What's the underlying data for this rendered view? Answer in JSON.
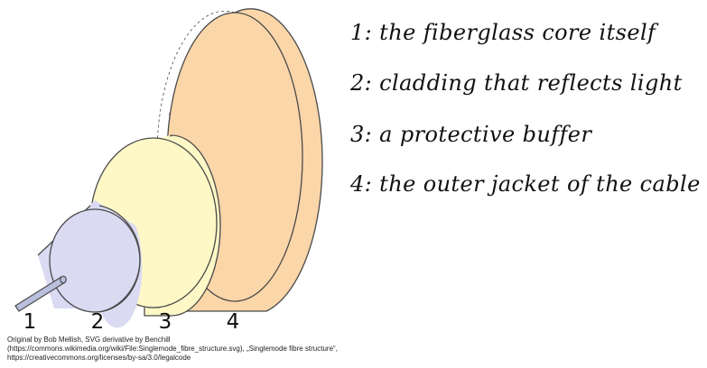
{
  "diagram": {
    "layers": [
      {
        "number": "1",
        "description": "1: the fiberglass core itself",
        "color": "#b9c0dd"
      },
      {
        "number": "2",
        "description": "2: cladding that reflects light",
        "color": "#dbdaf3"
      },
      {
        "number": "3",
        "description": "3: a protective buffer",
        "color": "#fdf8c6"
      },
      {
        "number": "4",
        "description": "4: the outer jacket of the cable",
        "color": "#fbd6a9"
      }
    ],
    "outline_color": "#4a4a4a",
    "credit": "Original by Bob Mellish, SVG derivative by Benchill (https://commons.wikimedia.org/wiki/File:Singlemode_fibre_structure.svg), „Singlemode fibre structure“, https://creativecommons.org/licenses/by-sa/3.0/legalcode"
  }
}
